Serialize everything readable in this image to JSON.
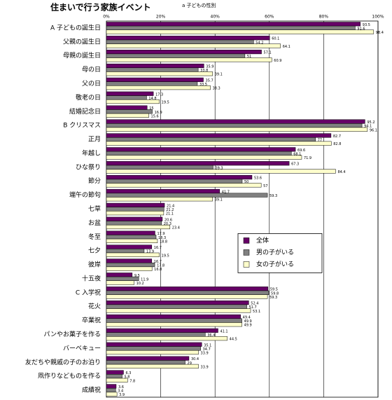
{
  "chart_data": {
    "type": "bar",
    "orientation": "horizontal",
    "title": "住まいで行う家族イベント",
    "subtitle": "a 子どもの性別",
    "categories": [
      "A 子どもの誕生日",
      "父親の誕生日",
      "母親の誕生日",
      "母の日",
      "父の日",
      "敬老の日",
      "結婚記念日",
      "B クリスマス",
      "正月",
      "年越し",
      "ひな祭り",
      "節分",
      "端午の節句",
      "七草",
      "お盆",
      "冬至",
      "七夕",
      "彼岸",
      "十五夜",
      "C 入学祝",
      "花火",
      "卒業祝",
      "パンやお菓子を作る",
      "バーベキュー",
      "友だちや親戚の子のお泊り",
      "凧作りなどものを作る",
      "成績祝"
    ],
    "series": [
      {
        "name": "全体",
        "color": "#660066",
        "values": [
          93.5,
          60.1,
          57.1,
          35.9,
          35.7,
          17.3,
          15,
          95.2,
          82.7,
          69.6,
          67.3,
          53.6,
          41.7,
          21.4,
          20.6,
          17.9,
          16.7,
          16.7,
          9.5,
          59.5,
          52.4,
          49.4,
          41.1,
          35.1,
          30.4,
          6.3,
          3.6
        ]
      },
      {
        "name": "男の子がいる",
        "color": "#808080",
        "values": [
          91.6,
          54.2,
          51,
          33.8,
          33.5,
          14.8,
          16.9,
          94.1,
          77,
          68.1,
          39.3,
          50,
          59.3,
          21.2,
          20.3,
          18.3,
          13.9,
          17.8,
          11.9,
          59.8,
          51.7,
          49.9,
          36.4,
          34.7,
          29,
          5.8,
          3.4
        ]
      },
      {
        "name": "女の子がいる",
        "color": "#ffffcc",
        "values": [
          98.4,
          64.1,
          60.9,
          39.1,
          38.3,
          19.5,
          15.6,
          96.1,
          82.8,
          71.9,
          84.4,
          57,
          39.1,
          21.1,
          23.4,
          18.8,
          19.5,
          16.8,
          10.2,
          59.3,
          53.1,
          49.9,
          44.5,
          33.9,
          33.9,
          7.8,
          3.9
        ]
      }
    ],
    "xlim": [
      0,
      100
    ],
    "xticks": [
      {
        "value": 0,
        "label": "0%"
      },
      {
        "value": 20,
        "label": "20%"
      },
      {
        "value": 40,
        "label": "40%"
      },
      {
        "value": 60,
        "label": "60%"
      },
      {
        "value": 80,
        "label": "80%"
      },
      {
        "value": 100,
        "label": "100%"
      }
    ],
    "grid": true,
    "legend": "right"
  }
}
